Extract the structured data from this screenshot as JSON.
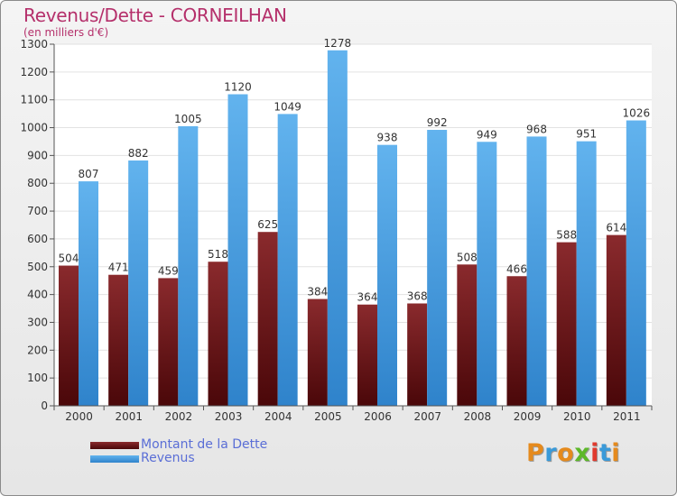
{
  "title": "Revenus/Dette - CORNEILHAN",
  "subtitle": "(en milliers d'€)",
  "logo": {
    "letters": [
      "P",
      "r",
      "o",
      "x",
      "i",
      "t",
      "i"
    ],
    "colors": [
      "#e58a1d",
      "#3a9ad9",
      "#e58a1d",
      "#5db829",
      "#e03a2e",
      "#3a9ad9",
      "#e58a1d"
    ]
  },
  "colors": {
    "dette": "#7a1f22",
    "dette_dark": "#4d0a0c",
    "revenus": "#5aaae8",
    "revenus_dark": "#2a7dc4",
    "title": "#b5306b",
    "legend_text": "#5a6ed6"
  },
  "chart_data": {
    "type": "bar",
    "categories": [
      "2000",
      "2001",
      "2002",
      "2003",
      "2004",
      "2005",
      "2006",
      "2007",
      "2008",
      "2009",
      "2010",
      "2011"
    ],
    "series": [
      {
        "name": "Montant de la Dette",
        "values": [
          504,
          471,
          459,
          518,
          625,
          384,
          364,
          368,
          508,
          466,
          588,
          614
        ]
      },
      {
        "name": "Revenus",
        "values": [
          807,
          882,
          1005,
          1120,
          1049,
          1278,
          938,
          992,
          949,
          968,
          951,
          1026
        ]
      }
    ],
    "ylim": [
      0,
      1300
    ],
    "yticks": [
      0,
      100,
      200,
      300,
      400,
      500,
      600,
      700,
      800,
      900,
      1000,
      1100,
      1200,
      1300
    ],
    "grid": true,
    "legend": "bottom-left"
  }
}
